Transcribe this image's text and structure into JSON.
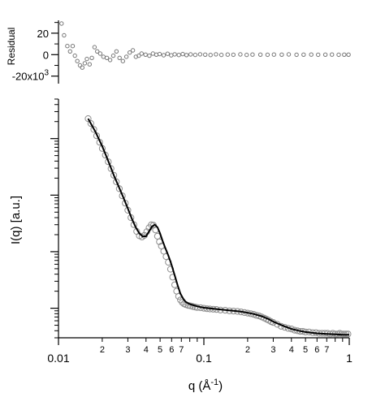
{
  "colors": {
    "axis": "#000000",
    "marker": "#8c8c8c",
    "fit": "#000000",
    "residual": "#777777"
  },
  "chart_data": [
    {
      "type": "scatter",
      "panel": "residual",
      "title": "",
      "ylabel": "Residual",
      "xscale": "log",
      "xlim": [
        0.0155,
        1.0
      ],
      "ylim": [
        -27000,
        32000
      ],
      "ytick_labels": [
        "20",
        "0",
        "-20x10"
      ],
      "ytick_exponent": "3",
      "series": [
        {
          "marker": "open-circle",
          "x": [
            0.0162,
            0.0168,
            0.0176,
            0.0183,
            0.019,
            0.0196,
            0.0203,
            0.0211,
            0.0218,
            0.0226,
            0.0233,
            0.0242,
            0.025,
            0.026,
            0.027,
            0.0282,
            0.0295,
            0.031,
            0.0325,
            0.034,
            0.0356,
            0.0372,
            0.039,
            0.041,
            0.043,
            0.045,
            0.047,
            0.049,
            0.051,
            0.054,
            0.057,
            0.06,
            0.063,
            0.066,
            0.07,
            0.074,
            0.078,
            0.082,
            0.087,
            0.092,
            0.097,
            0.103,
            0.11,
            0.118,
            0.127,
            0.137,
            0.148,
            0.16,
            0.175,
            0.19,
            0.21,
            0.23,
            0.25,
            0.28,
            0.31,
            0.34,
            0.38,
            0.42,
            0.47,
            0.52,
            0.58,
            0.64,
            0.71,
            0.78,
            0.86,
            0.93,
            0.99
          ],
          "y": [
            29000,
            18000,
            8000,
            3000,
            8000,
            -1000,
            -6000,
            -10000,
            -12000,
            -8000,
            -4000,
            -9000,
            -3000,
            7000,
            3000,
            1000,
            -2000,
            -3000,
            -5000,
            -1000,
            3000,
            -3000,
            -6000,
            -2000,
            2000,
            4000,
            -2000,
            -1000,
            1000,
            0,
            -1000,
            1000,
            0,
            500,
            -500,
            800,
            -600,
            300,
            -300,
            500,
            -400,
            200,
            -200,
            300,
            0,
            -300,
            300,
            -200,
            100,
            -100,
            200,
            -200,
            100,
            0,
            -100,
            100,
            0,
            200,
            -100,
            0,
            100,
            -100,
            0,
            100,
            -100,
            0,
            0
          ]
        }
      ]
    },
    {
      "type": "scatter",
      "panel": "main",
      "title": "",
      "xlabel": "q (Å",
      "xlabel_exponent": "-1",
      "xlabel_suffix": ")",
      "ylabel": "I(q) [a.u.]",
      "xscale": "log",
      "yscale": "log",
      "xlim": [
        0.01,
        1.0
      ],
      "ylim": [
        0.3,
        5000
      ],
      "grid": false,
      "xtick_major_labels": [
        "0.01",
        "0.1",
        "1"
      ],
      "xtick_minor_labels": [
        "2",
        "3",
        "4",
        "5",
        "6",
        "7",
        "2",
        "3",
        "4",
        "5",
        "6",
        "7",
        "2",
        "3",
        "4",
        "5",
        "6",
        "7"
      ],
      "series": [
        {
          "marker": "open-circle",
          "x": [
            0.016,
            0.0167,
            0.0175,
            0.0183,
            0.0192,
            0.02,
            0.021,
            0.022,
            0.023,
            0.024,
            0.025,
            0.0262,
            0.0275,
            0.0288,
            0.03,
            0.0315,
            0.033,
            0.0345,
            0.036,
            0.0375,
            0.039,
            0.0405,
            0.042,
            0.0435,
            0.045,
            0.0465,
            0.048,
            0.0495,
            0.051,
            0.053,
            0.055,
            0.057,
            0.059,
            0.061,
            0.063,
            0.065,
            0.067,
            0.069,
            0.071,
            0.073,
            0.075,
            0.078,
            0.081,
            0.084,
            0.087,
            0.09,
            0.095,
            0.1,
            0.105,
            0.11,
            0.116,
            0.122,
            0.13,
            0.14,
            0.15,
            0.16,
            0.17,
            0.18,
            0.19,
            0.2,
            0.21,
            0.22,
            0.23,
            0.24,
            0.25,
            0.26,
            0.27,
            0.28,
            0.29,
            0.3,
            0.32,
            0.34,
            0.36,
            0.38,
            0.4,
            0.42,
            0.44,
            0.46,
            0.48,
            0.5,
            0.53,
            0.56,
            0.59,
            0.62,
            0.65,
            0.68,
            0.71,
            0.74,
            0.77,
            0.8,
            0.83,
            0.86,
            0.89,
            0.92,
            0.95,
            0.98
          ],
          "y": [
            2250,
            1850,
            1450,
            1120,
            860,
            670,
            510,
            390,
            295,
            225,
            172,
            130,
            97,
            72,
            54,
            40,
            30,
            22.8,
            19.1,
            18.2,
            19.4,
            22.5,
            26.5,
            29.8,
            29.3,
            24.2,
            18.8,
            15,
            12.6,
            10.2,
            8.2,
            6.5,
            4.9,
            3.55,
            2.6,
            2.0,
            1.62,
            1.4,
            1.27,
            1.2,
            1.16,
            1.12,
            1.1,
            1.07,
            1.05,
            1.03,
            1.02,
            1.0,
            0.98,
            0.97,
            0.96,
            0.95,
            0.93,
            0.92,
            0.9,
            0.89,
            0.88,
            0.86,
            0.84,
            0.82,
            0.8,
            0.78,
            0.75,
            0.73,
            0.7,
            0.67,
            0.64,
            0.61,
            0.58,
            0.56,
            0.52,
            0.48,
            0.46,
            0.44,
            0.43,
            0.41,
            0.4,
            0.39,
            0.39,
            0.38,
            0.38,
            0.37,
            0.37,
            0.36,
            0.36,
            0.36,
            0.36,
            0.35,
            0.36,
            0.35,
            0.35,
            0.36,
            0.35,
            0.35,
            0.35,
            0.35
          ]
        },
        {
          "type": "line",
          "style": "fit",
          "x": [
            0.016,
            0.018,
            0.02,
            0.022,
            0.024,
            0.026,
            0.028,
            0.03,
            0.032,
            0.034,
            0.036,
            0.038,
            0.04,
            0.042,
            0.044,
            0.046,
            0.048,
            0.05,
            0.052,
            0.054,
            0.056,
            0.058,
            0.06,
            0.063,
            0.066,
            0.069,
            0.072,
            0.075,
            0.08,
            0.09,
            0.1,
            0.12,
            0.14,
            0.16,
            0.18,
            0.2,
            0.22,
            0.25,
            0.28,
            0.3,
            0.35,
            0.4,
            0.45,
            0.5,
            0.6,
            0.7,
            0.8,
            0.9,
            1.0
          ],
          "y": [
            2250,
            1300,
            730,
            400,
            225,
            140,
            90,
            58,
            38,
            27,
            21,
            18.6,
            18.8,
            23,
            28,
            30,
            27,
            21,
            15.5,
            12,
            9.6,
            7.5,
            5.8,
            3.8,
            2.55,
            1.8,
            1.48,
            1.3,
            1.18,
            1.08,
            1.02,
            0.97,
            0.93,
            0.9,
            0.87,
            0.83,
            0.79,
            0.72,
            0.64,
            0.58,
            0.49,
            0.43,
            0.4,
            0.38,
            0.36,
            0.35,
            0.345,
            0.34,
            0.34
          ]
        }
      ]
    }
  ]
}
